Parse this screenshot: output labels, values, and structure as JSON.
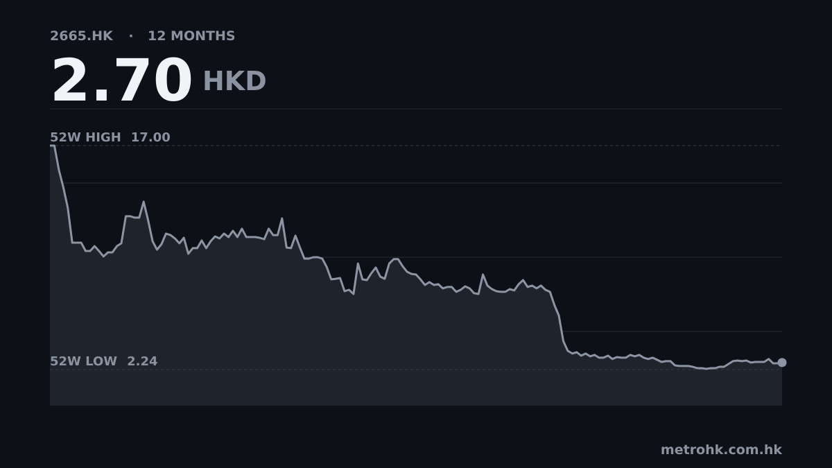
{
  "chart_data": {
    "type": "line",
    "ticker": "2665.HK",
    "separator": "·",
    "period": "12 MONTHS",
    "price": "2.70",
    "currency": "HKD",
    "high_label": "52W HIGH",
    "high": {
      "value": 17,
      "label": "17.00"
    },
    "low_label": "52W LOW",
    "low": {
      "value": 2.24,
      "label": "2.24"
    },
    "color": "#8d95a5",
    "ylim": [
      -0.14,
      19.42
    ],
    "values": [
      17.0,
      17.0,
      15.4,
      14.26,
      12.89,
      10.6,
      10.6,
      10.6,
      10.05,
      10.05,
      10.37,
      10.05,
      9.69,
      9.96,
      9.96,
      10.37,
      10.56,
      12.34,
      12.34,
      12.25,
      12.25,
      13.3,
      12.06,
      10.69,
      10.14,
      10.51,
      11.2,
      11.1,
      10.88,
      10.56,
      10.92,
      9.87,
      10.24,
      10.24,
      10.74,
      10.24,
      10.69,
      11.01,
      10.88,
      11.2,
      10.97,
      11.38,
      10.97,
      11.52,
      10.97,
      10.97,
      10.97,
      10.92,
      10.83,
      11.52,
      11.1,
      11.1,
      12.2,
      10.28,
      10.24,
      11.06,
      10.28,
      9.55,
      9.55,
      9.64,
      9.64,
      9.55,
      9.0,
      8.18,
      8.22,
      8.27,
      7.4,
      7.49,
      7.22,
      9.23,
      8.18,
      8.13,
      8.59,
      8.96,
      8.36,
      8.22,
      9.23,
      9.51,
      9.51,
      9.05,
      8.68,
      8.54,
      8.5,
      8.18,
      7.81,
      8.0,
      7.81,
      7.86,
      7.59,
      7.68,
      7.68,
      7.36,
      7.49,
      7.72,
      7.59,
      7.27,
      7.22,
      8.5,
      7.77,
      7.54,
      7.4,
      7.36,
      7.36,
      7.54,
      7.45,
      7.86,
      8.13,
      7.68,
      7.77,
      7.59,
      7.77,
      7.49,
      7.36,
      6.49,
      5.8,
      4.11,
      3.47,
      3.29,
      3.38,
      3.15,
      3.29,
      3.11,
      3.2,
      3.02,
      3.02,
      3.15,
      2.93,
      3.06,
      3.02,
      3.02,
      3.2,
      3.11,
      3.2,
      3.02,
      2.93,
      3.02,
      2.88,
      2.74,
      2.79,
      2.79,
      2.51,
      2.47,
      2.47,
      2.47,
      2.42,
      2.33,
      2.33,
      2.28,
      2.33,
      2.33,
      2.42,
      2.42,
      2.6,
      2.79,
      2.83,
      2.79,
      2.83,
      2.7,
      2.74,
      2.74,
      2.74,
      2.93,
      2.65,
      2.65,
      2.7
    ]
  },
  "footer": "metrohk.com.hk"
}
